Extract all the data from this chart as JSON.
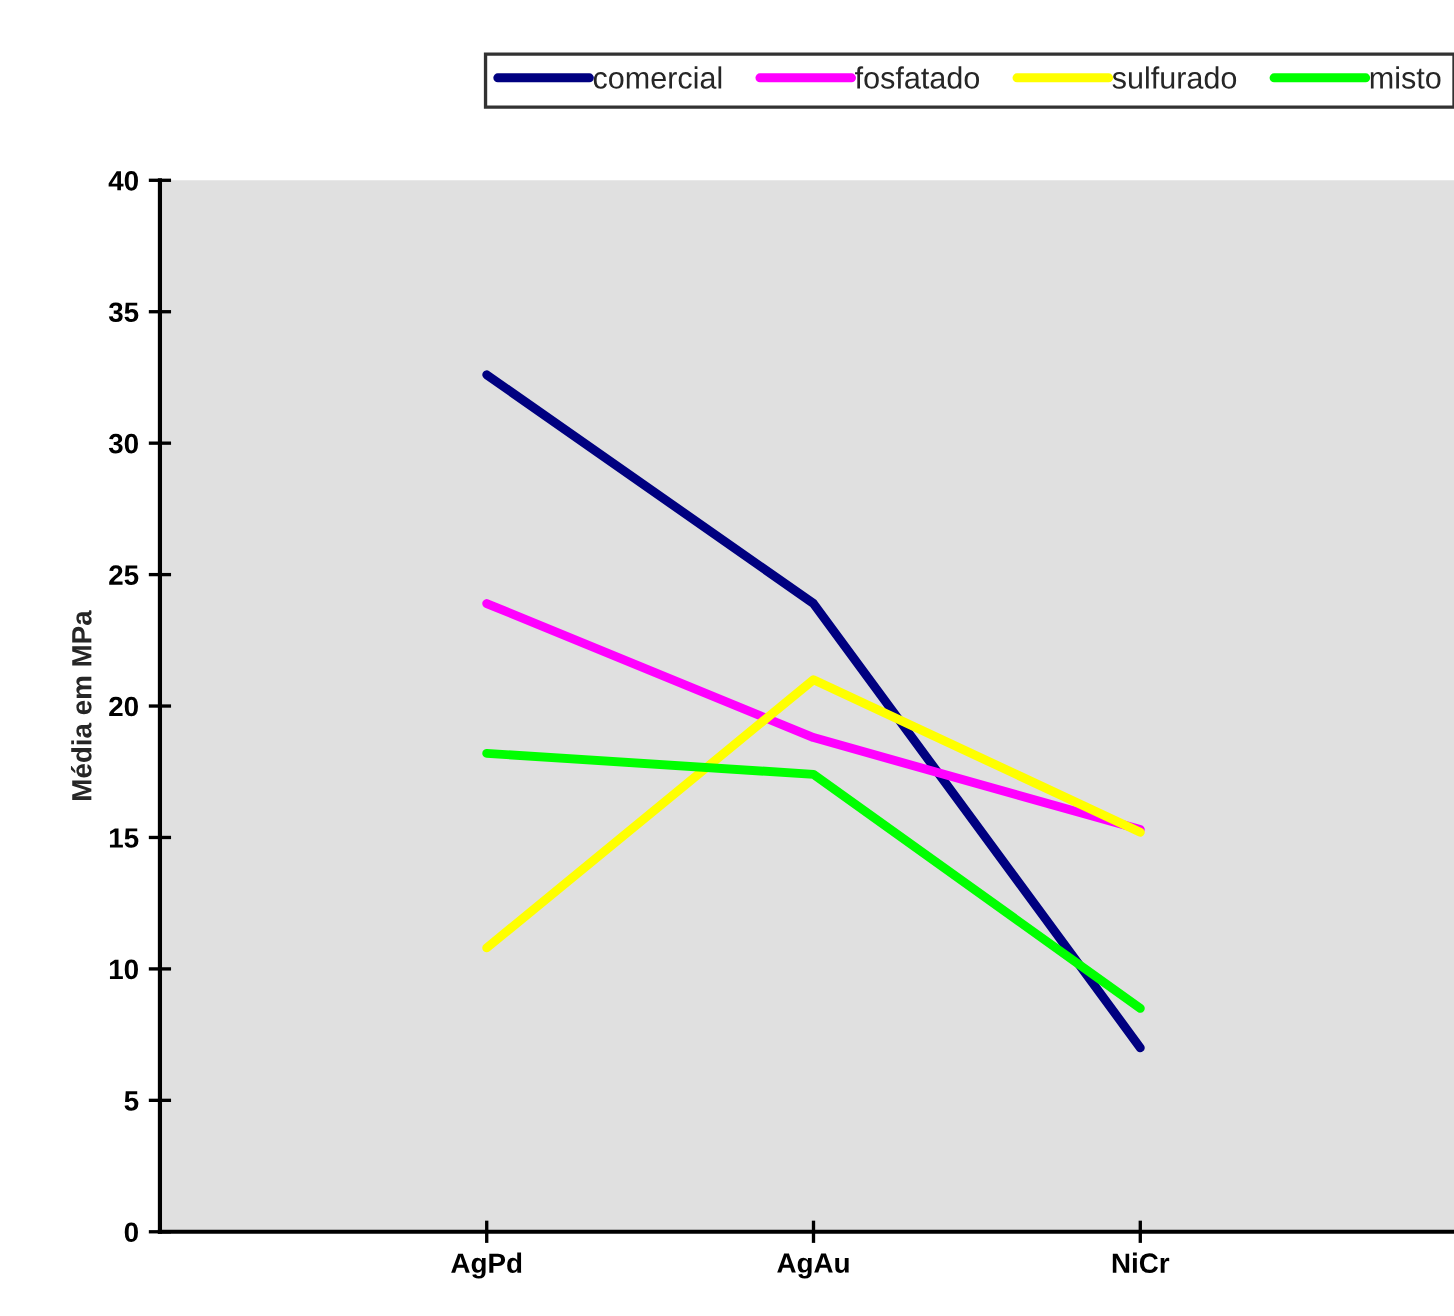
{
  "chart_data": {
    "type": "line",
    "ylabel": "Média em MPa",
    "categories": [
      "AgPd",
      "AgAu",
      "NiCr"
    ],
    "series": [
      {
        "name": "comercial",
        "color": "#000080",
        "values": [
          32.6,
          23.9,
          7.0
        ]
      },
      {
        "name": "fosfatado",
        "color": "#ff00ff",
        "values": [
          23.9,
          18.8,
          15.3
        ]
      },
      {
        "name": "sulfurado",
        "color": "#ffff00",
        "values": [
          10.8,
          21.0,
          15.2
        ]
      },
      {
        "name": "misto",
        "color": "#00ff00",
        "values": [
          18.2,
          17.4,
          8.5
        ]
      }
    ],
    "ylim": [
      0,
      40
    ],
    "yticks": [
      0,
      5,
      10,
      15,
      20,
      25,
      30,
      35,
      40
    ],
    "grid": false,
    "legend": "top right",
    "marker": "none",
    "line_style": "solid"
  }
}
